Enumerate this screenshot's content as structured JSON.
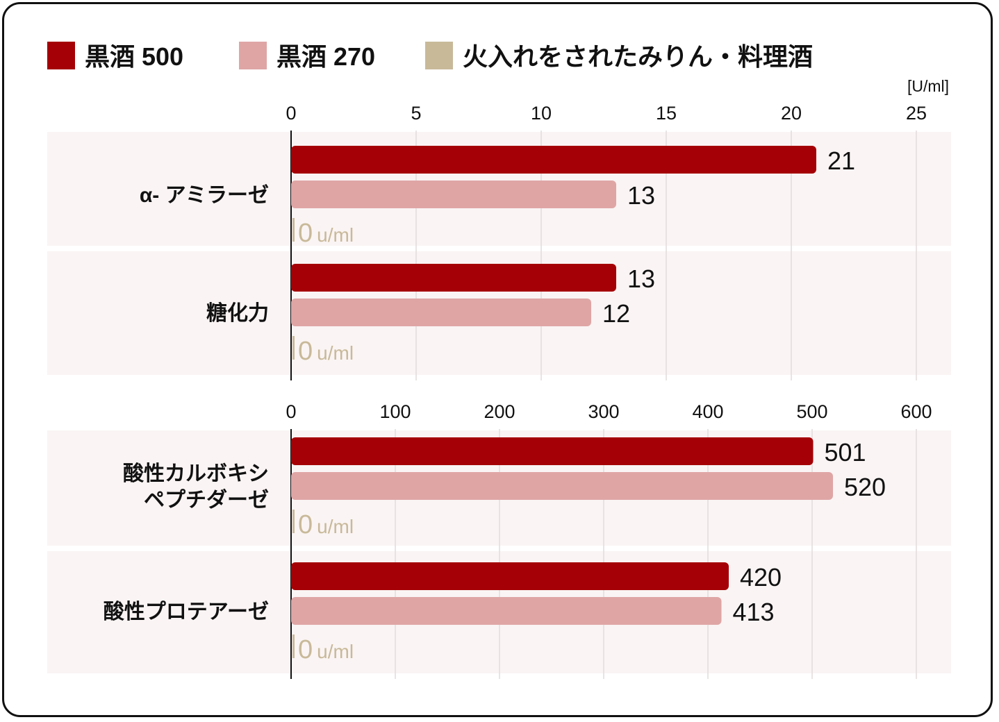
{
  "colors": {
    "series_dark": "#a50005",
    "series_pink": "#dfa5a5",
    "series_beige": "#c8b999",
    "band_bg": "#faf4f4",
    "grid": "#e2dcdc",
    "axis": "#111111"
  },
  "chart_data": [
    {
      "type": "bar",
      "orientation": "horizontal",
      "unit_label": "[U/ml]",
      "xlim": [
        0,
        25
      ],
      "ticks": [
        0,
        5,
        10,
        15,
        20,
        25
      ],
      "grid": true,
      "legend_position": "top",
      "categories": [
        "α- アミラーゼ",
        "糖化力"
      ],
      "series": [
        {
          "name": "黒酒 500",
          "color": "#a50005",
          "values": [
            21,
            13
          ],
          "labels": [
            "21",
            "13"
          ]
        },
        {
          "name": "黒酒 270",
          "color": "#dfa5a5",
          "values": [
            13,
            12
          ],
          "labels": [
            "13",
            "12"
          ]
        },
        {
          "name": "火入れをされたみりん・料理酒",
          "color": "#c8b999",
          "values": [
            0,
            0
          ],
          "labels": [
            "0",
            "0"
          ],
          "label_unit": "u/ml"
        }
      ]
    },
    {
      "type": "bar",
      "orientation": "horizontal",
      "xlim": [
        0,
        600
      ],
      "ticks": [
        0,
        100,
        200,
        300,
        400,
        500,
        600
      ],
      "grid": true,
      "categories": [
        "酸性カルボキシ\nペプチダーゼ",
        "酸性プロテアーゼ"
      ],
      "series": [
        {
          "name": "黒酒 500",
          "color": "#a50005",
          "values": [
            501,
            420
          ],
          "labels": [
            "501",
            "420"
          ]
        },
        {
          "name": "黒酒 270",
          "color": "#dfa5a5",
          "values": [
            520,
            413
          ],
          "labels": [
            "520",
            "413"
          ]
        },
        {
          "name": "火入れをされたみりん・料理酒",
          "color": "#c8b999",
          "values": [
            0,
            0
          ],
          "labels": [
            "0",
            "0"
          ],
          "label_unit": "u/ml"
        }
      ]
    }
  ]
}
